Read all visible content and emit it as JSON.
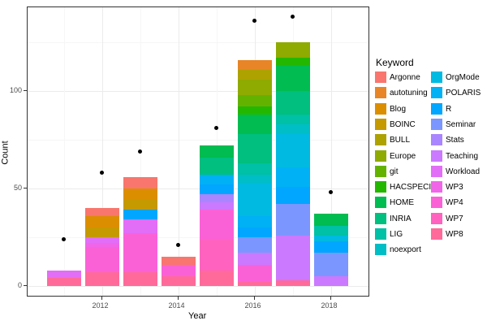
{
  "figure": {
    "background": "#FFFFFF",
    "panel_border_color": "#333333",
    "grid_major_color": "#EBEBEB",
    "grid_minor_color": "#F6F6F6",
    "point_color": "#000000"
  },
  "axes": {
    "x_title": "Year",
    "y_title": "Count",
    "y_ticks": [
      0,
      50,
      100
    ],
    "x_ticks": [
      2012,
      2014,
      2016,
      2018
    ]
  },
  "legend": {
    "title": "Keyword",
    "columns": [
      [
        "Argonne",
        "autotuning",
        "Blog",
        "BOINC",
        "BULL",
        "Europe",
        "git",
        "HACSPECIS",
        "HOME",
        "INRIA",
        "LIG",
        "noexport"
      ],
      [
        "OrgMode",
        "POLARIS",
        "R",
        "Seminar",
        "Stats",
        "Teaching",
        "Workload",
        "WP3",
        "WP4",
        "WP7",
        "WP8"
      ]
    ]
  },
  "chart_data": {
    "type": "bar",
    "stacked": true,
    "title": "",
    "xlabel": "Year",
    "ylabel": "Count",
    "x": [
      2011,
      2012,
      2013,
      2014,
      2015,
      2016,
      2017,
      2018
    ],
    "ylim": [
      0,
      143
    ],
    "yticks_major": [
      0,
      50,
      100
    ],
    "yticks_minor": [
      25,
      75,
      125
    ],
    "legend_position": "right",
    "legend_title": "Keyword",
    "keyword_colors": {
      "Argonne": "#F8766D",
      "autotuning": "#E88526",
      "Blog": "#DB8E00",
      "BOINC": "#C59900",
      "BULL": "#AEA200",
      "Europe": "#8FAA00",
      "git": "#64B200",
      "HACSPECIS": "#24B700",
      "HOME": "#00BC51",
      "INRIA": "#00BF7F",
      "LIG": "#00C0A5",
      "noexport": "#00BEC6",
      "OrgMode": "#00BAE2",
      "POLARIS": "#00B1F5",
      "R": "#00A6FF",
      "Seminar": "#7C96FF",
      "Stats": "#A985FF",
      "Teaching": "#CB79FF",
      "Workload": "#E26EF7",
      "WP3": "#F166E8",
      "WP4": "#FB61D7",
      "WP7": "#FF62BF",
      "WP8": "#FF6A9A"
    },
    "bars": [
      {
        "year": 2011,
        "total": 8,
        "segments": [
          {
            "keyword": "Workload",
            "value": 4
          },
          {
            "keyword": "WP8",
            "value": 4
          }
        ]
      },
      {
        "year": 2012,
        "total": 40,
        "segments": [
          {
            "keyword": "Argonne",
            "value": 4
          },
          {
            "keyword": "Blog",
            "value": 6
          },
          {
            "keyword": "BOINC",
            "value": 5
          },
          {
            "keyword": "Workload",
            "value": 3
          },
          {
            "keyword": "WP3",
            "value": 2
          },
          {
            "keyword": "WP4",
            "value": 13
          },
          {
            "keyword": "WP8",
            "value": 7
          }
        ]
      },
      {
        "year": 2013,
        "total": 56,
        "segments": [
          {
            "keyword": "Argonne",
            "value": 6
          },
          {
            "keyword": "Blog",
            "value": 6
          },
          {
            "keyword": "BOINC",
            "value": 5
          },
          {
            "keyword": "R",
            "value": 5
          },
          {
            "keyword": "Workload",
            "value": 7
          },
          {
            "keyword": "WP4",
            "value": 20
          },
          {
            "keyword": "WP8",
            "value": 7
          }
        ]
      },
      {
        "year": 2014,
        "total": 15,
        "segments": [
          {
            "keyword": "Argonne",
            "value": 4
          },
          {
            "keyword": "WP4",
            "value": 6
          },
          {
            "keyword": "WP8",
            "value": 5
          }
        ]
      },
      {
        "year": 2015,
        "total": 72,
        "segments": [
          {
            "keyword": "HOME",
            "value": 6
          },
          {
            "keyword": "INRIA",
            "value": 9
          },
          {
            "keyword": "POLARIS",
            "value": 5
          },
          {
            "keyword": "R",
            "value": 5
          },
          {
            "keyword": "Stats",
            "value": 4
          },
          {
            "keyword": "Teaching",
            "value": 4
          },
          {
            "keyword": "WP4",
            "value": 15
          },
          {
            "keyword": "WP7",
            "value": 16
          },
          {
            "keyword": "WP8",
            "value": 8
          }
        ]
      },
      {
        "year": 2016,
        "total": 116,
        "segments": [
          {
            "keyword": "autotuning",
            "value": 5
          },
          {
            "keyword": "BULL",
            "value": 5
          },
          {
            "keyword": "Europe",
            "value": 8
          },
          {
            "keyword": "git",
            "value": 6
          },
          {
            "keyword": "HACSPECIS",
            "value": 4
          },
          {
            "keyword": "HOME",
            "value": 10
          },
          {
            "keyword": "INRIA",
            "value": 15
          },
          {
            "keyword": "LIG",
            "value": 6
          },
          {
            "keyword": "noexport",
            "value": 4
          },
          {
            "keyword": "OrgMode",
            "value": 17
          },
          {
            "keyword": "POLARIS",
            "value": 6
          },
          {
            "keyword": "R",
            "value": 5
          },
          {
            "keyword": "Seminar",
            "value": 8
          },
          {
            "keyword": "Teaching",
            "value": 6
          },
          {
            "keyword": "WP4",
            "value": 9
          },
          {
            "keyword": "WP8",
            "value": 2
          }
        ]
      },
      {
        "year": 2017,
        "total": 125,
        "segments": [
          {
            "keyword": "Europe",
            "value": 8
          },
          {
            "keyword": "HACSPECIS",
            "value": 4
          },
          {
            "keyword": "HOME",
            "value": 13
          },
          {
            "keyword": "INRIA",
            "value": 12
          },
          {
            "keyword": "LIG",
            "value": 5
          },
          {
            "keyword": "noexport",
            "value": 5
          },
          {
            "keyword": "OrgMode",
            "value": 17
          },
          {
            "keyword": "POLARIS",
            "value": 10
          },
          {
            "keyword": "R",
            "value": 9
          },
          {
            "keyword": "Seminar",
            "value": 16
          },
          {
            "keyword": "Teaching",
            "value": 23
          },
          {
            "keyword": "WP8",
            "value": 3
          }
        ]
      },
      {
        "year": 2018,
        "total": 37,
        "segments": [
          {
            "keyword": "HOME",
            "value": 6
          },
          {
            "keyword": "LIG",
            "value": 5
          },
          {
            "keyword": "OrgMode",
            "value": 3
          },
          {
            "keyword": "R",
            "value": 6
          },
          {
            "keyword": "Seminar",
            "value": 12
          },
          {
            "keyword": "Teaching",
            "value": 5
          }
        ]
      }
    ],
    "points": [
      {
        "year": 2011,
        "value": 24
      },
      {
        "year": 2012,
        "value": 58
      },
      {
        "year": 2013,
        "value": 69
      },
      {
        "year": 2014,
        "value": 21
      },
      {
        "year": 2015,
        "value": 81
      },
      {
        "year": 2016,
        "value": 136
      },
      {
        "year": 2017,
        "value": 138
      },
      {
        "year": 2018,
        "value": 48
      }
    ]
  }
}
